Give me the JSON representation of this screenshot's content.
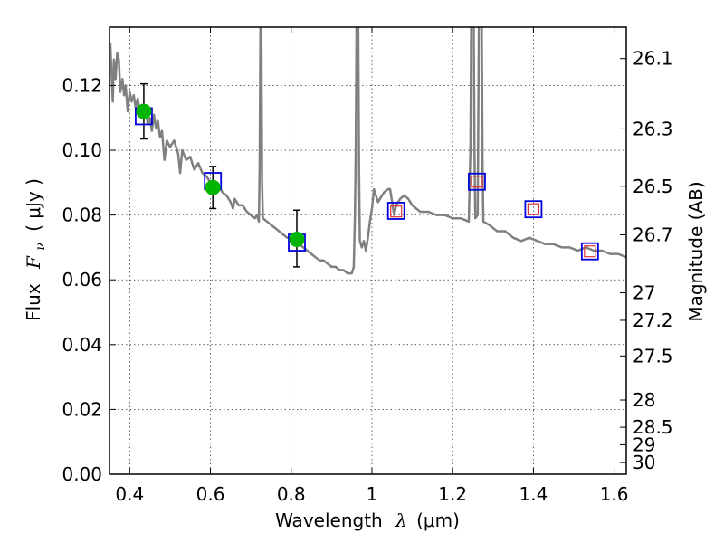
{
  "chart_data": {
    "type": "scatter",
    "xlabel": {
      "prefix": "Wavelength",
      "symbol": "λ",
      "unit": "(μm)"
    },
    "ylabel": {
      "prefix": "Flux",
      "symbol": "F",
      "subscript": "ν",
      "unit": "( μJy )"
    },
    "y2label": "Magnitude (AB)",
    "xlim": [
      0.35,
      1.63
    ],
    "ylim": [
      0.0,
      0.138
    ],
    "grid": true,
    "x_ticks": [
      {
        "value": 0.4,
        "label": "0.4"
      },
      {
        "value": 0.6,
        "label": "0.6"
      },
      {
        "value": 0.8,
        "label": "0.8"
      },
      {
        "value": 1.0,
        "label": "1"
      },
      {
        "value": 1.2,
        "label": "1.2"
      },
      {
        "value": 1.4,
        "label": "1.4"
      },
      {
        "value": 1.6,
        "label": "1.6"
      }
    ],
    "y_ticks": [
      {
        "value": 0.0,
        "label": "0.00"
      },
      {
        "value": 0.02,
        "label": "0.02"
      },
      {
        "value": 0.04,
        "label": "0.04"
      },
      {
        "value": 0.06,
        "label": "0.06"
      },
      {
        "value": 0.08,
        "label": "0.08"
      },
      {
        "value": 0.1,
        "label": "0.10"
      },
      {
        "value": 0.12,
        "label": "0.12"
      }
    ],
    "y2_ticks": [
      {
        "label": "26.1",
        "flux": 0.1283
      },
      {
        "label": "26.3",
        "flux": 0.1066
      },
      {
        "label": "26.5",
        "flux": 0.0889
      },
      {
        "label": "26.7",
        "flux": 0.0739
      },
      {
        "label": "27",
        "flux": 0.056
      },
      {
        "label": "27.2",
        "flux": 0.0475
      },
      {
        "label": "27.5",
        "flux": 0.0365
      },
      {
        "label": "28",
        "flux": 0.0229
      },
      {
        "label": "28.5",
        "flux": 0.0145
      },
      {
        "label": "29",
        "flux": 0.0091
      },
      {
        "label": "30",
        "flux": 0.0036
      }
    ],
    "series": [
      {
        "kind": "model-spectrum",
        "color": "#808080",
        "points": [
          [
            0.35,
            0.123
          ],
          [
            0.352,
            0.133
          ],
          [
            0.355,
            0.124
          ],
          [
            0.358,
            0.115
          ],
          [
            0.361,
            0.128
          ],
          [
            0.365,
            0.122
          ],
          [
            0.369,
            0.13
          ],
          [
            0.373,
            0.128
          ],
          [
            0.377,
            0.118
          ],
          [
            0.382,
            0.122
          ],
          [
            0.386,
            0.117
          ],
          [
            0.39,
            0.12
          ],
          [
            0.395,
            0.112
          ],
          [
            0.4,
            0.118
          ],
          [
            0.405,
            0.115
          ],
          [
            0.41,
            0.117
          ],
          [
            0.415,
            0.113
          ],
          [
            0.42,
            0.116
          ],
          [
            0.425,
            0.112
          ],
          [
            0.43,
            0.114
          ],
          [
            0.436,
            0.11
          ],
          [
            0.44,
            0.112
          ],
          [
            0.445,
            0.108
          ],
          [
            0.45,
            0.11
          ],
          [
            0.455,
            0.106
          ],
          [
            0.46,
            0.111
          ],
          [
            0.465,
            0.107
          ],
          [
            0.47,
            0.109
          ],
          [
            0.475,
            0.104
          ],
          [
            0.48,
            0.106
          ],
          [
            0.486,
            0.097
          ],
          [
            0.492,
            0.103
          ],
          [
            0.5,
            0.101
          ],
          [
            0.51,
            0.103
          ],
          [
            0.52,
            0.099
          ],
          [
            0.525,
            0.093
          ],
          [
            0.53,
            0.1
          ],
          [
            0.54,
            0.097
          ],
          [
            0.55,
            0.098
          ],
          [
            0.56,
            0.094
          ],
          [
            0.57,
            0.096
          ],
          [
            0.58,
            0.093
          ],
          [
            0.59,
            0.092
          ],
          [
            0.6,
            0.09
          ],
          [
            0.61,
            0.088
          ],
          [
            0.62,
            0.089
          ],
          [
            0.63,
            0.087
          ],
          [
            0.64,
            0.086
          ],
          [
            0.65,
            0.084
          ],
          [
            0.656,
            0.082
          ],
          [
            0.66,
            0.085
          ],
          [
            0.67,
            0.083
          ],
          [
            0.68,
            0.083
          ],
          [
            0.69,
            0.081
          ],
          [
            0.7,
            0.08
          ],
          [
            0.71,
            0.079
          ],
          [
            0.715,
            0.08
          ],
          [
            0.72,
            0.078
          ],
          [
            0.722,
            0.095
          ],
          [
            0.724,
            0.14
          ],
          [
            0.726,
            0.14
          ],
          [
            0.728,
            0.09
          ],
          [
            0.73,
            0.079
          ],
          [
            0.74,
            0.078
          ],
          [
            0.75,
            0.077
          ],
          [
            0.76,
            0.076
          ],
          [
            0.77,
            0.075
          ],
          [
            0.78,
            0.074
          ],
          [
            0.79,
            0.073
          ],
          [
            0.8,
            0.073
          ],
          [
            0.81,
            0.072
          ],
          [
            0.82,
            0.071
          ],
          [
            0.83,
            0.07
          ],
          [
            0.84,
            0.069
          ],
          [
            0.85,
            0.068
          ],
          [
            0.86,
            0.067
          ],
          [
            0.87,
            0.066
          ],
          [
            0.88,
            0.066
          ],
          [
            0.89,
            0.065
          ],
          [
            0.9,
            0.064
          ],
          [
            0.91,
            0.064
          ],
          [
            0.92,
            0.063
          ],
          [
            0.93,
            0.063
          ],
          [
            0.94,
            0.062
          ],
          [
            0.95,
            0.062
          ],
          [
            0.955,
            0.064
          ],
          [
            0.958,
            0.08
          ],
          [
            0.96,
            0.1
          ],
          [
            0.962,
            0.14
          ],
          [
            0.966,
            0.14
          ],
          [
            0.968,
            0.095
          ],
          [
            0.97,
            0.072
          ],
          [
            0.975,
            0.07
          ],
          [
            0.98,
            0.072
          ],
          [
            0.985,
            0.069
          ],
          [
            0.99,
            0.073
          ],
          [
            0.995,
            0.078
          ],
          [
            1.0,
            0.082
          ],
          [
            1.005,
            0.088
          ],
          [
            1.01,
            0.086
          ],
          [
            1.015,
            0.084
          ],
          [
            1.02,
            0.085
          ],
          [
            1.03,
            0.087
          ],
          [
            1.04,
            0.088
          ],
          [
            1.045,
            0.088
          ],
          [
            1.05,
            0.084
          ],
          [
            1.055,
            0.08
          ],
          [
            1.06,
            0.083
          ],
          [
            1.07,
            0.085
          ],
          [
            1.08,
            0.086
          ],
          [
            1.09,
            0.085
          ],
          [
            1.1,
            0.083
          ],
          [
            1.11,
            0.082
          ],
          [
            1.12,
            0.081
          ],
          [
            1.14,
            0.081
          ],
          [
            1.16,
            0.08
          ],
          [
            1.18,
            0.08
          ],
          [
            1.2,
            0.079
          ],
          [
            1.22,
            0.079
          ],
          [
            1.24,
            0.078
          ],
          [
            1.244,
            0.1
          ],
          [
            1.246,
            0.14
          ],
          [
            1.252,
            0.14
          ],
          [
            1.254,
            0.1
          ],
          [
            1.256,
            0.079
          ],
          [
            1.262,
            0.08
          ],
          [
            1.265,
            0.14
          ],
          [
            1.272,
            0.14
          ],
          [
            1.274,
            0.095
          ],
          [
            1.276,
            0.078
          ],
          [
            1.29,
            0.077
          ],
          [
            1.31,
            0.075
          ],
          [
            1.33,
            0.075
          ],
          [
            1.35,
            0.073
          ],
          [
            1.37,
            0.072
          ],
          [
            1.39,
            0.073
          ],
          [
            1.41,
            0.072
          ],
          [
            1.43,
            0.071
          ],
          [
            1.45,
            0.071
          ],
          [
            1.47,
            0.07
          ],
          [
            1.49,
            0.07
          ],
          [
            1.51,
            0.069
          ],
          [
            1.53,
            0.07
          ],
          [
            1.55,
            0.069
          ],
          [
            1.57,
            0.069
          ],
          [
            1.59,
            0.068
          ],
          [
            1.61,
            0.068
          ],
          [
            1.63,
            0.067
          ]
        ]
      },
      {
        "kind": "observed-photometry",
        "marker": "circle",
        "color": "#00b400",
        "errorbar_color": "#000000",
        "points": [
          {
            "x": 0.435,
            "y": 0.112,
            "ylo": 0.1035,
            "yhi": 0.1205
          },
          {
            "x": 0.606,
            "y": 0.0885,
            "ylo": 0.082,
            "yhi": 0.095
          },
          {
            "x": 0.814,
            "y": 0.0725,
            "ylo": 0.064,
            "yhi": 0.0815
          }
        ]
      },
      {
        "kind": "model-photometry-outer",
        "marker": "square",
        "color": "#0000dd",
        "points": [
          {
            "x": 0.435,
            "y": 0.1105
          },
          {
            "x": 0.606,
            "y": 0.0905
          },
          {
            "x": 0.814,
            "y": 0.0715
          },
          {
            "x": 1.06,
            "y": 0.0813
          },
          {
            "x": 1.26,
            "y": 0.0903
          },
          {
            "x": 1.4,
            "y": 0.0818
          },
          {
            "x": 1.54,
            "y": 0.0688
          }
        ]
      },
      {
        "kind": "model-photometry-inner",
        "marker": "square",
        "color": "#dd3333",
        "points": [
          {
            "x": 1.06,
            "y": 0.0811
          },
          {
            "x": 1.26,
            "y": 0.0903
          },
          {
            "x": 1.4,
            "y": 0.0818
          },
          {
            "x": 1.54,
            "y": 0.0688
          }
        ]
      }
    ]
  }
}
